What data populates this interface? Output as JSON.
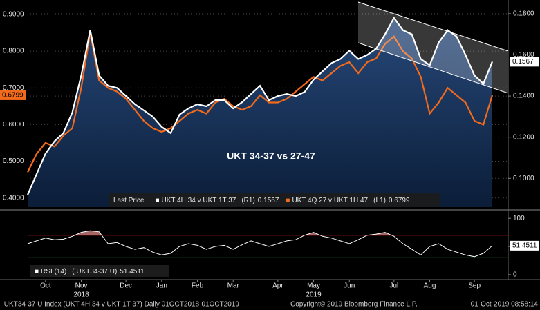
{
  "chart_data": [
    {
      "type": "line",
      "annotation": "UKT 34-37 vs 27-47",
      "legend_title": "Last Price",
      "categories": [
        null,
        null,
        "Oct",
        null,
        null,
        null,
        "Nov",
        null,
        null,
        null,
        null,
        "Dec",
        null,
        null,
        null,
        "Jan",
        null,
        null,
        null,
        "Feb",
        null,
        null,
        null,
        "Mar",
        null,
        null,
        null,
        null,
        "Apr",
        null,
        null,
        null,
        "May",
        null,
        null,
        null,
        "Jun",
        null,
        null,
        null,
        null,
        "Jul",
        null,
        null,
        null,
        "Aug",
        null,
        null,
        null,
        null,
        "Sep",
        null,
        null
      ],
      "year_labels": [
        null,
        null,
        null,
        null,
        null,
        null,
        "2018",
        null,
        null,
        null,
        null,
        null,
        null,
        null,
        null,
        null,
        null,
        null,
        null,
        null,
        null,
        null,
        null,
        null,
        null,
        null,
        null,
        null,
        null,
        null,
        null,
        null,
        "2019",
        null,
        null,
        null,
        null,
        null,
        null,
        null,
        null,
        null,
        null,
        null,
        null,
        null,
        null,
        null,
        null,
        null,
        null,
        null,
        null
      ],
      "series": [
        {
          "name": "UKT 4H 34 v UKT 1T 37",
          "axis_label": "(R1)",
          "color": "#ffffff",
          "axis": "y2",
          "values": [
            0.092,
            0.102,
            0.112,
            0.118,
            0.122,
            0.132,
            0.15,
            0.172,
            0.15,
            0.145,
            0.144,
            0.14,
            0.136,
            0.133,
            0.13,
            0.125,
            0.122,
            0.131,
            0.134,
            0.136,
            0.135,
            0.138,
            0.138,
            0.134,
            0.137,
            0.141,
            0.145,
            0.138,
            0.14,
            0.141,
            0.14,
            0.142,
            0.148,
            0.152,
            0.156,
            0.158,
            0.162,
            0.158,
            0.16,
            0.163,
            0.17,
            0.178,
            0.172,
            0.17,
            0.158,
            0.155,
            0.166,
            0.172,
            0.169,
            0.16,
            0.15,
            0.146,
            0.1567
          ]
        },
        {
          "name": "UKT 4Q 27 v UKT 1H 47",
          "axis_label": "(L1)",
          "color": "#f26a1b",
          "values": [
            0.47,
            0.52,
            0.55,
            0.54,
            0.57,
            0.59,
            0.7,
            0.85,
            0.72,
            0.7,
            0.69,
            0.67,
            0.64,
            0.61,
            0.59,
            0.58,
            0.59,
            0.61,
            0.63,
            0.64,
            0.63,
            0.66,
            0.67,
            0.65,
            0.64,
            0.65,
            0.68,
            0.66,
            0.66,
            0.67,
            0.69,
            0.71,
            0.73,
            0.72,
            0.74,
            0.76,
            0.77,
            0.74,
            0.77,
            0.78,
            0.82,
            0.84,
            0.8,
            0.78,
            0.73,
            0.63,
            0.66,
            0.7,
            0.68,
            0.66,
            0.61,
            0.6,
            0.6799
          ]
        }
      ],
      "ylim": [
        0.375,
        0.93
      ],
      "yticks": [
        {
          "value": 0.4,
          "label": "0.4000"
        },
        {
          "value": 0.5,
          "label": "0.5000"
        },
        {
          "value": 0.6,
          "label": "0.6000"
        },
        {
          "value": 0.7,
          "label": "0.7000"
        },
        {
          "value": 0.8,
          "label": "0.8000"
        },
        {
          "value": 0.9,
          "label": "0.9000"
        }
      ],
      "y2lim": [
        0.086,
        0.185
      ],
      "y2ticks": [
        {
          "value": 0.1,
          "label": "0.1000"
        },
        {
          "value": 0.12,
          "label": "0.1200"
        },
        {
          "value": 0.14,
          "label": "0.1400"
        },
        {
          "value": 0.16,
          "label": "0.1600"
        },
        {
          "value": 0.18,
          "label": "0.1800"
        }
      ],
      "grid": true
    },
    {
      "type": "line",
      "series": [
        {
          "name": "RSI (14)",
          "axis_label": "(.UKT34-37 U)",
          "color": "#ffffff",
          "axis": "y2",
          "values": [
            55,
            60,
            65,
            62,
            63,
            68,
            75,
            78,
            76,
            55,
            57,
            50,
            45,
            48,
            40,
            35,
            38,
            50,
            55,
            52,
            45,
            50,
            52,
            45,
            53,
            60,
            55,
            50,
            55,
            60,
            62,
            70,
            75,
            68,
            65,
            60,
            55,
            62,
            70,
            72,
            75,
            68,
            55,
            45,
            35,
            50,
            55,
            45,
            40,
            35,
            32,
            38,
            51.4511
          ]
        }
      ],
      "y2lim": [
        -5,
        110
      ],
      "y2ticks": [
        0,
        50,
        100
      ],
      "levels": [
        {
          "value": 70,
          "color": "#d42020"
        },
        {
          "value": 30,
          "color": "#22c022"
        }
      ]
    }
  ],
  "footer": {
    "left": ".UKT34-37 U Index (UKT 4H 34 v UKT 1T 37)  Daily 01OCT2018-01OCT2019",
    "center": "Copyright© 2019 Bloomberg Finance L.P.",
    "right": "01-Oct-2019 08:58:14"
  }
}
